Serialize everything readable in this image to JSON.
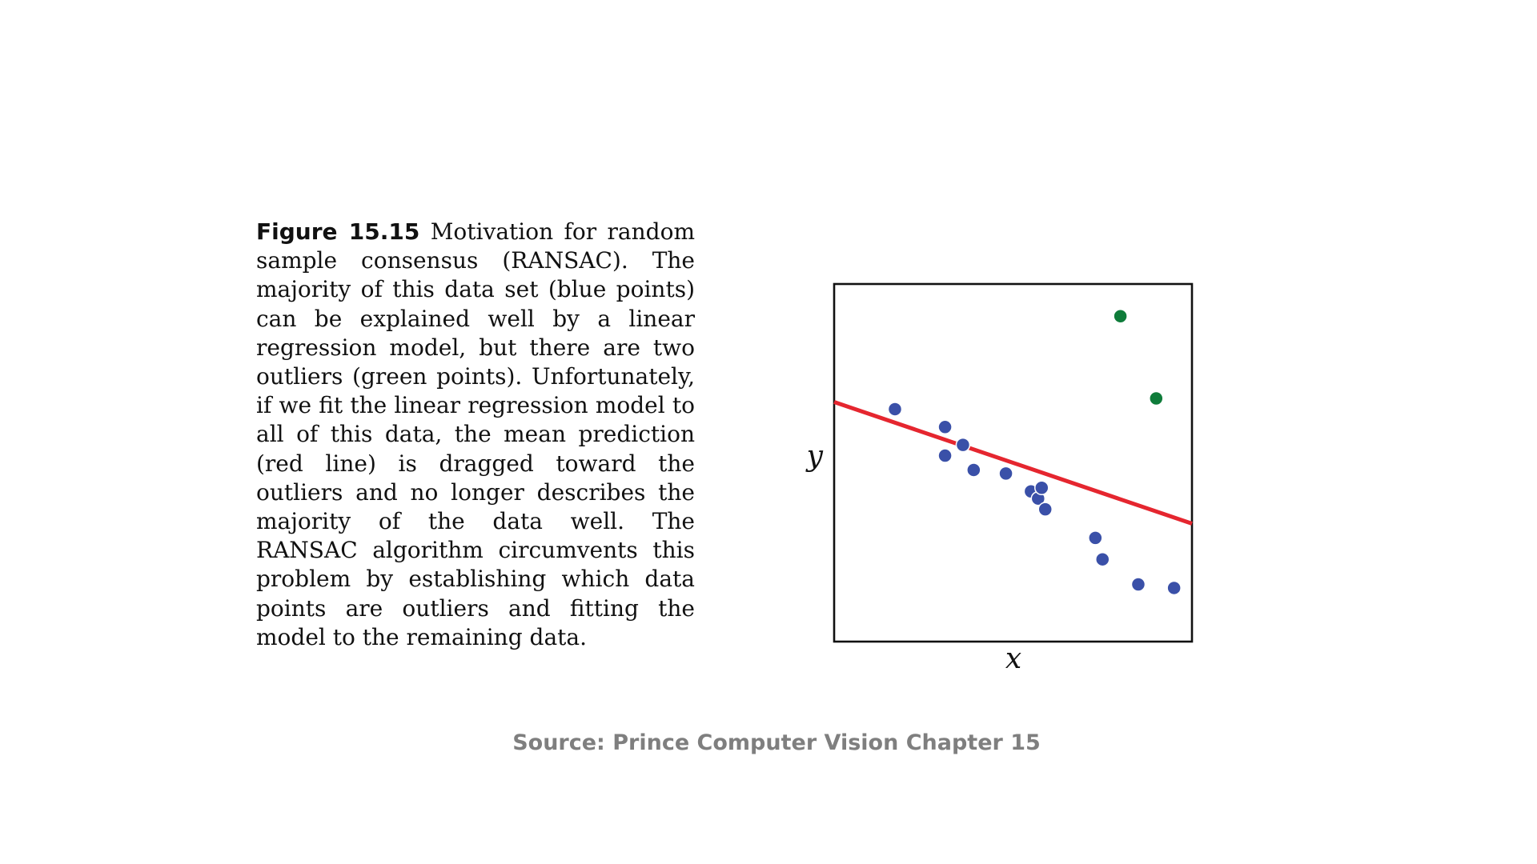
{
  "caption": {
    "label": "Figure 15.15",
    "text": "Motivation for random sample consensus (RANSAC). The majority of this data set (blue points) can be explained well by a linear regression model, but there are two outliers (green points). Unfortunately, if we fit the linear regression model to all of this data, the mean prediction (red line) is dragged toward the outliers and no longer describes the majority of the data well. The RANSAC algorithm circumvents this problem by establishing which data points are outliers and fitting the model to the remaining data."
  },
  "source": "Source: Prince Computer Vision Chapter 15",
  "colors": {
    "inlier": "#3a50a8",
    "outlier": "#0f7c3a",
    "fit_line": "#e5262f",
    "frame": "#111111"
  },
  "chart_data": {
    "type": "scatter",
    "xlabel": "x",
    "ylabel": "y",
    "xlim": [
      0,
      10
    ],
    "ylim": [
      0,
      10
    ],
    "grid": false,
    "tick_labels": false,
    "series": [
      {
        "points": [
          {
            "x": 1.7,
            "y": 6.5
          },
          {
            "x": 3.1,
            "y": 6.0
          },
          {
            "x": 3.6,
            "y": 5.5
          },
          {
            "x": 3.1,
            "y": 5.2
          },
          {
            "x": 3.9,
            "y": 4.8
          },
          {
            "x": 4.8,
            "y": 4.7
          },
          {
            "x": 5.5,
            "y": 4.2
          },
          {
            "x": 5.7,
            "y": 4.0
          },
          {
            "x": 5.8,
            "y": 4.3
          },
          {
            "x": 5.9,
            "y": 3.7
          },
          {
            "x": 7.3,
            "y": 2.9
          },
          {
            "x": 7.5,
            "y": 2.3
          },
          {
            "x": 8.5,
            "y": 1.6
          },
          {
            "x": 9.5,
            "y": 1.5
          }
        ],
        "color_key": "inlier"
      },
      {
        "points": [
          {
            "x": 8.0,
            "y": 9.1
          },
          {
            "x": 9.0,
            "y": 6.8
          }
        ],
        "color_key": "outlier"
      }
    ],
    "fit_line": {
      "x": [
        0,
        10
      ],
      "y": [
        6.7,
        3.3
      ]
    }
  }
}
